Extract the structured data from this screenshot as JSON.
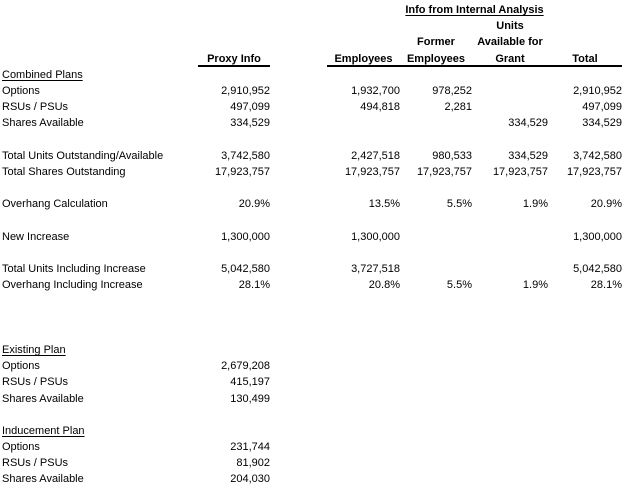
{
  "header": {
    "title": "Info from Internal Analysis",
    "proxy": "Proxy Info",
    "employees": "Employees",
    "former_l1": "Former",
    "former_l2": "Employees",
    "units_l1": "Units",
    "units_l2": "Available for",
    "units_l3": "Grant",
    "total": "Total"
  },
  "table": {
    "rows": [
      {
        "label": "Combined Plans",
        "type": "section",
        "values": [
          "",
          "",
          "",
          "",
          ""
        ]
      },
      {
        "label": "Options",
        "type": "data",
        "values": [
          "2,910,952",
          "1,932,700",
          "978,252",
          "",
          "2,910,952"
        ]
      },
      {
        "label": "RSUs / PSUs",
        "type": "data",
        "values": [
          "497,099",
          "494,818",
          "2,281",
          "",
          "497,099"
        ]
      },
      {
        "label": "Shares Available",
        "type": "data",
        "values": [
          "334,529",
          "",
          "",
          "334,529",
          "334,529"
        ]
      },
      {
        "label": "",
        "type": "blank",
        "values": [
          "",
          "",
          "",
          "",
          ""
        ]
      },
      {
        "label": "Total Units Outstanding/Available",
        "type": "data",
        "values": [
          "3,742,580",
          "2,427,518",
          "980,533",
          "334,529",
          "3,742,580"
        ]
      },
      {
        "label": "Total Shares Outstanding",
        "type": "data",
        "values": [
          "17,923,757",
          "17,923,757",
          "17,923,757",
          "17,923,757",
          "17,923,757"
        ]
      },
      {
        "label": "",
        "type": "blank",
        "values": [
          "",
          "",
          "",
          "",
          ""
        ]
      },
      {
        "label": "Overhang Calculation",
        "type": "data",
        "values": [
          "20.9%",
          "13.5%",
          "5.5%",
          "1.9%",
          "20.9%"
        ]
      },
      {
        "label": "",
        "type": "blank",
        "values": [
          "",
          "",
          "",
          "",
          ""
        ]
      },
      {
        "label": "New Increase",
        "type": "data",
        "values": [
          "1,300,000",
          "1,300,000",
          "",
          "",
          "1,300,000"
        ]
      },
      {
        "label": "",
        "type": "blank",
        "values": [
          "",
          "",
          "",
          "",
          ""
        ]
      },
      {
        "label": "Total Units Including Increase",
        "type": "data",
        "values": [
          "5,042,580",
          "3,727,518",
          "",
          "",
          "5,042,580"
        ]
      },
      {
        "label": "Overhang Including Increase",
        "type": "data",
        "values": [
          "28.1%",
          "20.8%",
          "5.5%",
          "1.9%",
          "28.1%"
        ]
      },
      {
        "label": "",
        "type": "blank",
        "values": [
          "",
          "",
          "",
          "",
          ""
        ]
      },
      {
        "label": "",
        "type": "blank",
        "values": [
          "",
          "",
          "",
          "",
          ""
        ]
      },
      {
        "label": "",
        "type": "blank",
        "values": [
          "",
          "",
          "",
          "",
          ""
        ]
      },
      {
        "label": "Existing Plan",
        "type": "section",
        "values": [
          "",
          "",
          "",
          "",
          ""
        ]
      },
      {
        "label": "Options",
        "type": "data",
        "values": [
          "2,679,208",
          "",
          "",
          "",
          ""
        ]
      },
      {
        "label": "RSUs / PSUs",
        "type": "data",
        "values": [
          "415,197",
          "",
          "",
          "",
          ""
        ]
      },
      {
        "label": "Shares Available",
        "type": "data",
        "values": [
          "130,499",
          "",
          "",
          "",
          ""
        ]
      },
      {
        "label": "",
        "type": "blank",
        "values": [
          "",
          "",
          "",
          "",
          ""
        ]
      },
      {
        "label": "Inducement Plan",
        "type": "section",
        "values": [
          "",
          "",
          "",
          "",
          ""
        ]
      },
      {
        "label": "Options",
        "type": "data",
        "values": [
          "231,744",
          "",
          "",
          "",
          ""
        ]
      },
      {
        "label": "RSUs / PSUs",
        "type": "data",
        "values": [
          "81,902",
          "",
          "",
          "",
          ""
        ]
      },
      {
        "label": "Shares Available",
        "type": "data",
        "values": [
          "204,030",
          "",
          "",
          "",
          ""
        ]
      }
    ]
  }
}
